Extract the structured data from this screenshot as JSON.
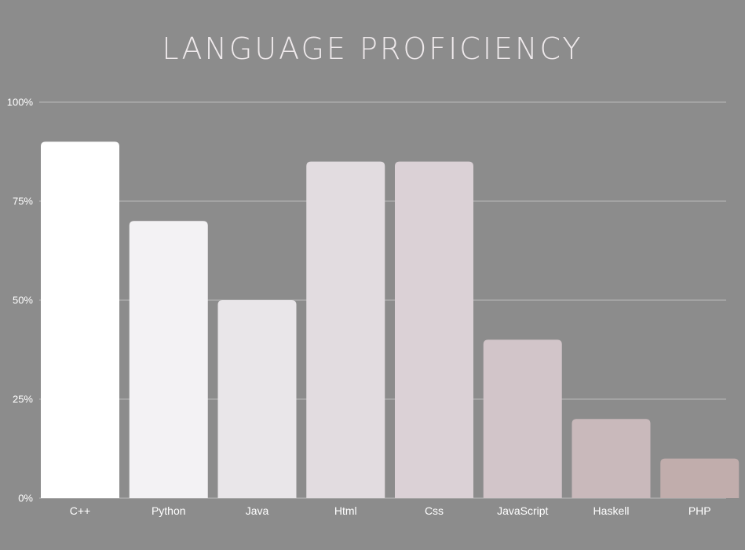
{
  "chart_data": {
    "type": "bar",
    "title": "LANGUAGE PROFICIENCY",
    "categories": [
      "C++",
      "Python",
      "Java",
      "Html",
      "Css",
      "JavaScript",
      "Haskell",
      "PHP"
    ],
    "values": [
      90,
      70,
      50,
      85,
      85,
      40,
      20,
      10
    ],
    "ylim": [
      0,
      100
    ],
    "yticks": [
      0,
      25,
      50,
      75,
      100
    ],
    "ytick_labels": [
      "0%",
      "25%",
      "50%",
      "75%",
      "100%"
    ],
    "grid": true,
    "bar_colors": [
      "#ffffff",
      "#f3f2f4",
      "#e9e6e9",
      "#e2dce0",
      "#dbd1d6",
      "#d2c5c9",
      "#c9b9bb",
      "#c1adac"
    ],
    "background": "#8c8c8c",
    "grid_color": "#a3a3a3"
  }
}
